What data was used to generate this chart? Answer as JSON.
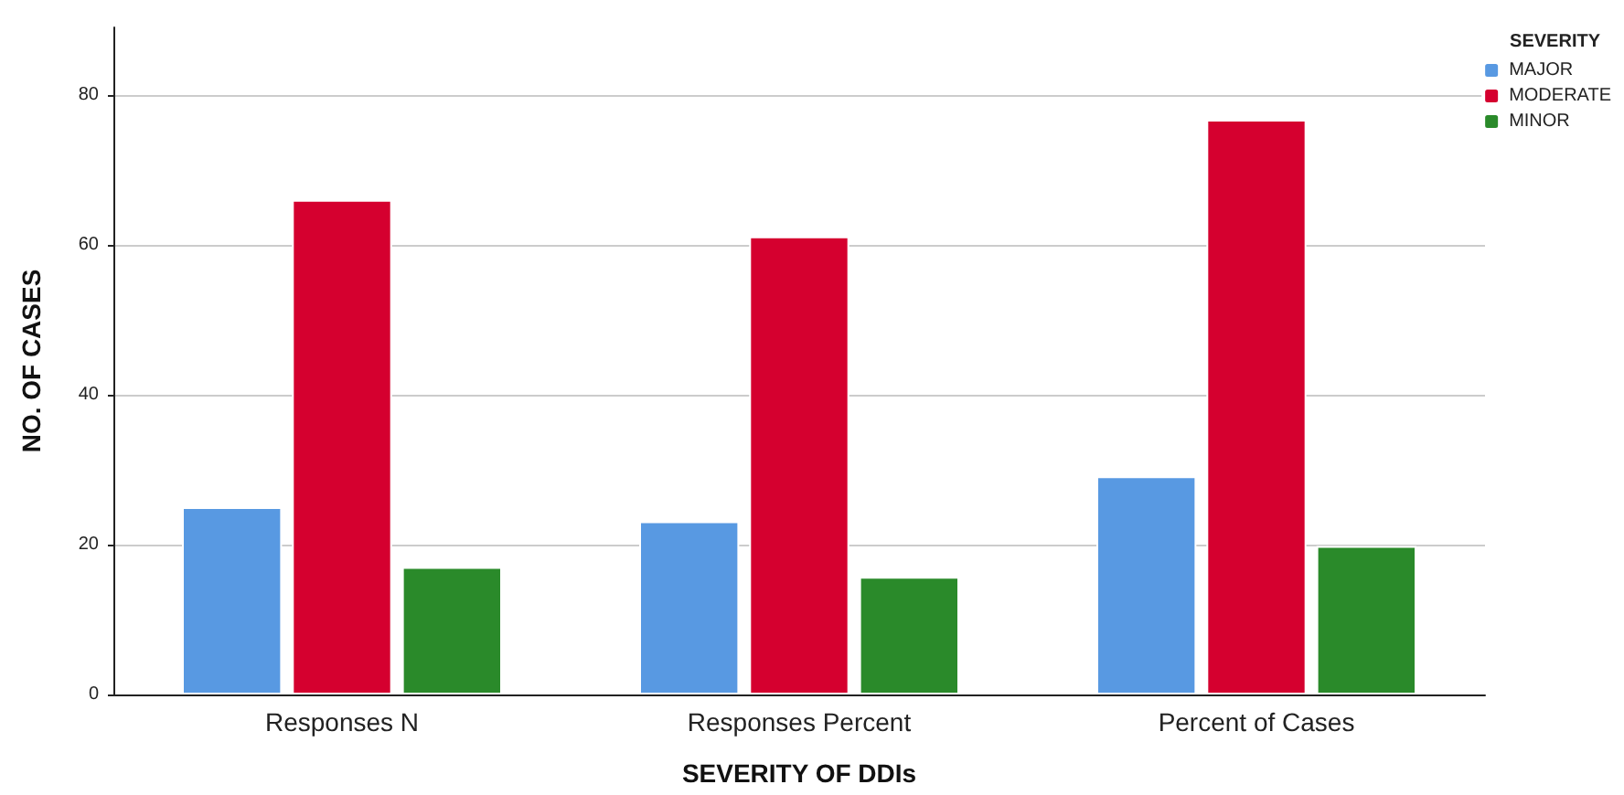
{
  "chart_data": {
    "type": "bar",
    "xlabel": "SEVERITY OF DDIs",
    "ylabel": "NO. OF CASES",
    "legend_title": "SEVERITY",
    "categories": [
      "Responses N",
      "Responses Percent",
      "Percent of Cases"
    ],
    "series": [
      {
        "name": "MAJOR",
        "color": "#5899e2",
        "values": [
          25,
          23.1,
          29.1
        ]
      },
      {
        "name": "MODERATE",
        "color": "#d5002f",
        "values": [
          66,
          61.1,
          76.7
        ]
      },
      {
        "name": "MINOR",
        "color": "#2a8a2a",
        "values": [
          17,
          15.7,
          19.8
        ]
      }
    ],
    "ylim": [
      0,
      89
    ],
    "yticks": [
      0,
      20,
      40,
      60,
      80
    ],
    "grid": "y",
    "legend": "top right"
  }
}
